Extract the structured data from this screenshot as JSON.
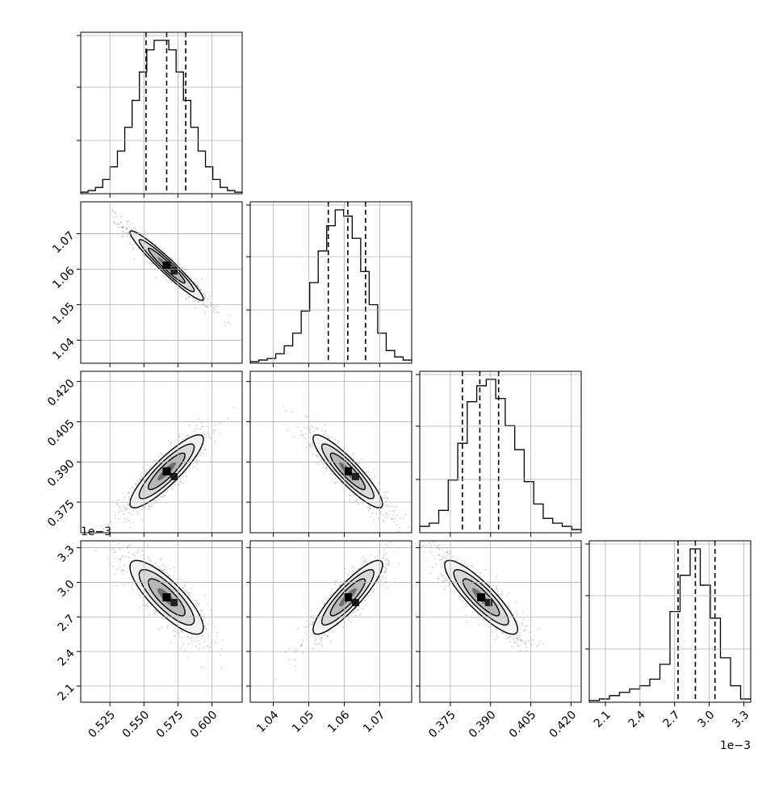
{
  "colors": {
    "background": "#ffffff",
    "axes": "#000000",
    "grid": "#b0b0b0",
    "scatter": "#8c8c8c",
    "contour_fill": [
      "#f2f2f2",
      "#b8b8b8",
      "#6e6e6e"
    ],
    "hist_peak": "#000000"
  },
  "chart_data": {
    "type": "corner",
    "parameters": [
      {
        "id": "p0",
        "ticks": [
          "0.525",
          "0.550",
          "0.575",
          "0.600"
        ],
        "tick_values": [
          0.525,
          0.55,
          0.575,
          0.6
        ],
        "range": [
          0.5035,
          0.6222
        ],
        "offset_label": ""
      },
      {
        "id": "p1",
        "ticks": [
          "1.04",
          "1.05",
          "1.06",
          "1.07"
        ],
        "tick_values": [
          1.04,
          1.05,
          1.06,
          1.07
        ],
        "range": [
          1.0335,
          1.079
        ],
        "offset_label": ""
      },
      {
        "id": "p2",
        "ticks": [
          "0.375",
          "0.390",
          "0.405",
          "0.420"
        ],
        "tick_values": [
          0.375,
          0.39,
          0.405,
          0.42
        ],
        "range": [
          0.3636,
          0.4238
        ],
        "offset_label": ""
      },
      {
        "id": "p3",
        "ticks": [
          "2.1",
          "2.4",
          "2.7",
          "3.0",
          "3.3"
        ],
        "tick_values": [
          2.1,
          2.4,
          2.7,
          3.0,
          3.3
        ],
        "range": [
          1.96,
          3.36
        ],
        "offset_label": "1e−3"
      }
    ],
    "histograms": [
      {
        "param": 0,
        "edges_start": 0.5035,
        "edges_end": 0.6222,
        "counts": [
          1,
          2,
          4,
          9,
          17,
          27,
          42,
          59,
          77,
          91,
          97,
          97,
          91,
          77,
          59,
          42,
          27,
          17,
          9,
          4,
          2,
          1
        ],
        "quantiles": [
          0.5515,
          0.5667,
          0.5807
        ]
      },
      {
        "param": 1,
        "edges_start": 1.0335,
        "edges_end": 1.079,
        "counts": [
          1,
          2,
          3,
          6,
          11,
          19,
          33,
          51,
          71,
          87,
          97,
          93,
          79,
          58,
          37,
          19,
          8,
          4,
          2
        ],
        "quantiles": [
          1.0555,
          1.061,
          1.066
        ]
      },
      {
        "param": 2,
        "edges_start": 0.3636,
        "edges_end": 0.4238,
        "counts": [
          4,
          6,
          14,
          33,
          56,
          82,
          92,
          96,
          84,
          67,
          52,
          32,
          18,
          9,
          6,
          4,
          2
        ],
        "quantiles": [
          0.3795,
          0.386,
          0.393
        ]
      },
      {
        "param": 3,
        "edges_start": 1.96,
        "edges_end": 3.36,
        "counts": [
          1,
          2,
          4,
          6,
          8,
          10,
          14,
          23,
          55,
          77,
          93,
          71,
          51,
          27,
          10,
          2
        ],
        "quantiles": [
          2.73,
          2.88,
          3.05
        ]
      }
    ],
    "pairs": [
      {
        "x": 0,
        "y": 1,
        "mean": [
          0.5667,
          1.061
        ],
        "sd": [
          0.0135,
          0.0049
        ],
        "corr": -0.96
      },
      {
        "x": 0,
        "y": 2,
        "mean": [
          0.5667,
          0.3865
        ],
        "sd": [
          0.0135,
          0.0068
        ],
        "corr": 0.88
      },
      {
        "x": 1,
        "y": 2,
        "mean": [
          1.061,
          0.3865
        ],
        "sd": [
          0.0049,
          0.0068
        ],
        "corr": -0.9
      },
      {
        "x": 0,
        "y": 3,
        "mean": [
          0.5667,
          2.87
        ],
        "sd": [
          0.0135,
          0.16
        ],
        "corr": -0.82
      },
      {
        "x": 1,
        "y": 3,
        "mean": [
          1.061,
          2.87
        ],
        "sd": [
          0.0049,
          0.16
        ],
        "corr": 0.88
      },
      {
        "x": 2,
        "y": 3,
        "mean": [
          0.3865,
          2.87
        ],
        "sd": [
          0.0068,
          0.16
        ],
        "corr": -0.87
      }
    ],
    "contour_levels_sigma": [
      0.5,
      1.0,
      1.5,
      2.0
    ],
    "grid": true
  }
}
